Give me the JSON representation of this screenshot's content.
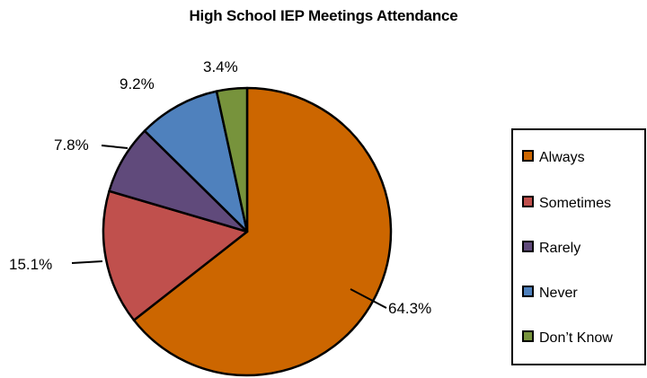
{
  "chart_data": {
    "type": "pie",
    "title": "High School IEP Meetings Attendance",
    "categories": [
      "Always",
      "Sometimes",
      "Rarely",
      "Never",
      "Don’t Know"
    ],
    "values": [
      64.3,
      15.1,
      7.8,
      9.2,
      3.4
    ],
    "labels": [
      "64.3%",
      "15.1%",
      "7.8%",
      "9.2%",
      "3.4%"
    ],
    "colors": [
      "#CC6600",
      "#C0504D",
      "#604A7B",
      "#4F81BD",
      "#77933C"
    ],
    "legend_position": "right"
  }
}
